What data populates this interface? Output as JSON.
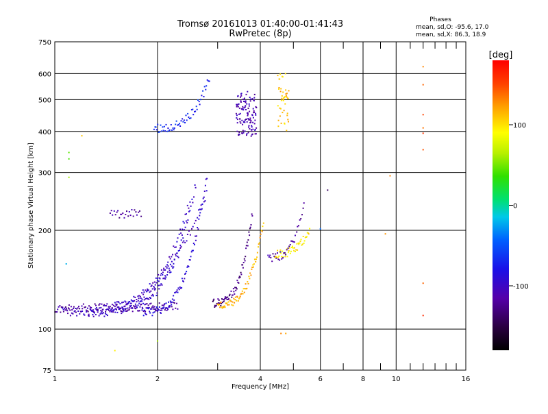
{
  "chart_data": {
    "type": "scatter",
    "title": "Tromsø 20161013 01:40:00-01:41:43",
    "subtitle": "RwPretec (8p)",
    "xlabel": "Frequency [MHz]",
    "ylabel": "Stationary phase Virtual Height [km]",
    "x_scale": "log",
    "y_scale": "log",
    "xlim": [
      1,
      16
    ],
    "ylim": [
      75,
      750
    ],
    "x_ticks": [
      1,
      2,
      4,
      6,
      8,
      10,
      16
    ],
    "x_tick_labels": [
      "1",
      "2",
      "4",
      "6",
      "8",
      "10",
      "16"
    ],
    "x_minor_ticks": [
      3,
      5,
      7,
      9,
      11,
      12,
      13,
      14,
      15
    ],
    "y_ticks": [
      75,
      100,
      200,
      300,
      400,
      500,
      600,
      750
    ],
    "y_tick_labels": [
      "75",
      "100",
      "200",
      "300",
      "400",
      "500",
      "600",
      "750"
    ],
    "grid": true,
    "phases_info": {
      "title": "Phases",
      "line1": "mean, sd,O: -95.6, 17.0",
      "line2": "mean, sd,X:  86.3, 18.9"
    },
    "colorbar": {
      "label": "[deg]",
      "range": [
        -180,
        180
      ],
      "ticks": [
        100,
        0,
        -100
      ],
      "tick_labels": [
        "100",
        "0",
        "-100"
      ]
    },
    "series": [
      {
        "name": "trace-low-O",
        "phase": -118,
        "f_start": 1.0,
        "f_end": 2.3,
        "h_start": 116,
        "h_end": 118,
        "asym": 2.5,
        "npts": 130
      },
      {
        "name": "trace-E-rise",
        "phase": -102,
        "f_start": 1.05,
        "f_end": 2.8,
        "h_start": 113,
        "h_end": 260,
        "asym": 2.9,
        "npts": 110
      },
      {
        "name": "trace-mid1",
        "phase": -100,
        "f_start": 1.25,
        "f_end": 2.5,
        "h_start": 112,
        "h_end": 250,
        "asym": 2.55,
        "npts": 95
      },
      {
        "name": "trace-mid2",
        "phase": -95,
        "f_start": 1.5,
        "f_end": 2.6,
        "h_start": 118,
        "h_end": 280,
        "asym": 2.65,
        "npts": 85
      },
      {
        "name": "trace-mid3",
        "phase": -90,
        "f_start": 1.8,
        "f_end": 2.8,
        "h_start": 113,
        "h_end": 300,
        "asym": 2.85,
        "npts": 90
      },
      {
        "name": "trace-F1-O",
        "phase": -128,
        "f_start": 2.9,
        "f_end": 3.8,
        "h_start": 120,
        "h_end": 230,
        "asym": 3.85,
        "npts": 70
      },
      {
        "name": "trace-F1-X",
        "phase": 115,
        "f_start": 3.0,
        "f_end": 4.1,
        "h_start": 118,
        "h_end": 220,
        "asym": 4.15,
        "npts": 70
      },
      {
        "name": "trace-F2-Y",
        "phase": 98,
        "f_start": 4.4,
        "f_end": 5.6,
        "h_start": 170,
        "h_end": 205,
        "asym": 5.7,
        "npts": 50
      },
      {
        "name": "trace-F2-O",
        "phase": -118,
        "f_start": 4.2,
        "f_end": 5.4,
        "h_start": 165,
        "h_end": 245,
        "asym": 5.5,
        "npts": 35
      },
      {
        "name": "trace-upper-F",
        "phase": -70,
        "f_start": 1.95,
        "f_end": 2.85,
        "h_start": 410,
        "h_end": 590,
        "asym": 2.9,
        "npts": 60
      },
      {
        "name": "cluster-440-O",
        "phase": -110,
        "f_start": 3.4,
        "f_end": 3.9,
        "h_start": 380,
        "h_end": 520,
        "asym": 0,
        "npts": 120
      },
      {
        "name": "cluster-450-X",
        "phase": 110,
        "f_start": 4.5,
        "f_end": 4.85,
        "h_start": 410,
        "h_end": 600,
        "asym": 0,
        "npts": 45
      },
      {
        "name": "line-220",
        "phase": -115,
        "f_start": 1.45,
        "f_end": 1.8,
        "h_start": 223,
        "h_end": 226,
        "asym": 0,
        "npts": 25
      }
    ],
    "sparse_points": [
      {
        "f": 1.1,
        "h": 345,
        "phase": 45
      },
      {
        "f": 1.1,
        "h": 330,
        "phase": 40
      },
      {
        "f": 1.1,
        "h": 290,
        "phase": 60
      },
      {
        "f": 1.2,
        "h": 388,
        "phase": 110
      },
      {
        "f": 1.08,
        "h": 158,
        "phase": -20
      },
      {
        "f": 1.5,
        "h": 86,
        "phase": 95
      },
      {
        "f": 2.0,
        "h": 92,
        "phase": 60
      },
      {
        "f": 4.6,
        "h": 97,
        "phase": 130
      },
      {
        "f": 4.75,
        "h": 97,
        "phase": 120
      },
      {
        "f": 6.3,
        "h": 265,
        "phase": -140
      },
      {
        "f": 6.0,
        "h": 202,
        "phase": -40
      },
      {
        "f": 9.3,
        "h": 195,
        "phase": 125
      },
      {
        "f": 9.6,
        "h": 293,
        "phase": 130
      },
      {
        "f": 12.0,
        "h": 630,
        "phase": 130
      },
      {
        "f": 12.0,
        "h": 555,
        "phase": 140
      },
      {
        "f": 12.0,
        "h": 450,
        "phase": 150
      },
      {
        "f": 12.0,
        "h": 410,
        "phase": 135
      },
      {
        "f": 12.0,
        "h": 395,
        "phase": 155
      },
      {
        "f": 12.0,
        "h": 352,
        "phase": 145
      },
      {
        "f": 12.0,
        "h": 138,
        "phase": 140
      },
      {
        "f": 12.0,
        "h": 110,
        "phase": 160
      }
    ]
  }
}
